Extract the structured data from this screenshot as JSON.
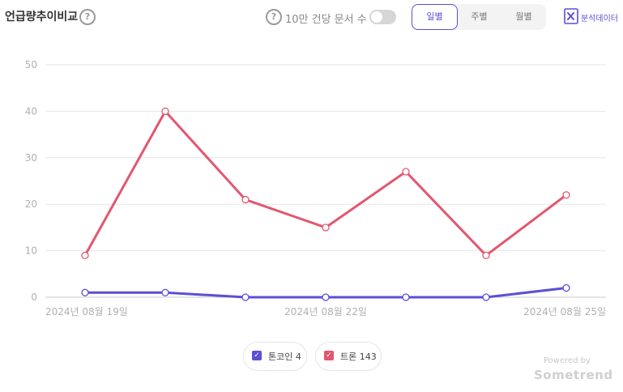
{
  "header": {
    "title": "언급량추이비교",
    "help_glyph": "?",
    "toggle_label": "10만 건당 문서 수",
    "segments": [
      "일별",
      "주별",
      "월별"
    ],
    "active_segment": 0,
    "export_label": "분석데이터"
  },
  "legend": [
    {
      "label": "톤코인",
      "count": "4",
      "color": "#5a4fd6",
      "check": "✓"
    },
    {
      "label": "트론",
      "count": "143",
      "color": "#e2576f",
      "check": "✓"
    }
  ],
  "footer": {
    "powered": "Powered by",
    "brand": "Sometrend"
  },
  "chart_data": {
    "type": "line",
    "x": [
      "2024-08-19",
      "2024-08-20",
      "2024-08-21",
      "2024-08-22",
      "2024-08-23",
      "2024-08-24",
      "2024-08-25"
    ],
    "x_tick_labels": [
      {
        "index": 0,
        "label": "2024년 08월 19일"
      },
      {
        "index": 3,
        "label": "2024년 08월 22일"
      },
      {
        "index": 6,
        "label": "2024년 08월 25일"
      }
    ],
    "y_ticks": [
      0,
      10,
      20,
      30,
      40,
      50
    ],
    "ylim": [
      0,
      50
    ],
    "grid": true,
    "series": [
      {
        "name": "트론",
        "color": "#e2576f",
        "values": [
          9,
          40,
          21,
          15,
          27,
          9,
          22
        ]
      },
      {
        "name": "톤코인",
        "color": "#5a4fd6",
        "values": [
          1,
          1,
          0,
          0,
          0,
          0,
          2
        ]
      }
    ]
  }
}
